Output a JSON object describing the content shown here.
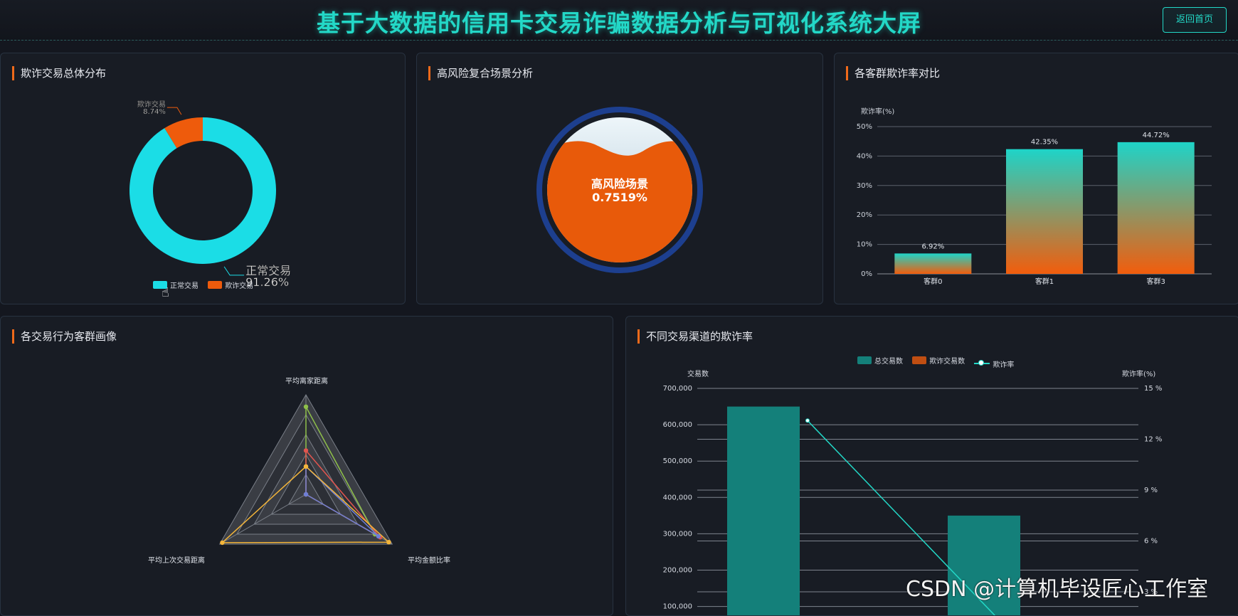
{
  "header": {
    "title": "基于大数据的信用卡交易诈骗数据分析与可视化系统大屏",
    "back_label": "返回首页"
  },
  "colors": {
    "accent": "#23d8c7",
    "orange": "#e85a0a",
    "panel_bg": "#181c24"
  },
  "panels": {
    "fraud_distribution": "欺诈交易总体分布",
    "high_risk": "高风险复合场景分析",
    "cluster_fraud_rate": "各客群欺诈率对比",
    "cluster_radar": "各交易行为客群画像",
    "channel_fraud": "不同交易渠道的欺诈率"
  },
  "watermark": "CSDN @计算机毕设匠心工作室",
  "chart_data": [
    {
      "type": "pie",
      "title": "欺诈交易总体分布",
      "slices": [
        {
          "name": "正常交易",
          "value": 91.26,
          "label": "91.26%",
          "color": "#1bdde6"
        },
        {
          "name": "欺诈交易",
          "value": 8.74,
          "label": "8.74%",
          "color": "#ee5b0c"
        }
      ],
      "donut": true,
      "legend": "bottom"
    },
    {
      "type": "liquidfill",
      "title": "高风险复合场景分析",
      "label": "高风险场景",
      "value_text": "0.7519%"
    },
    {
      "type": "bar",
      "title": "各客群欺诈率对比",
      "ylabel": "欺诈率(%)",
      "categories": [
        "客群0",
        "客群1",
        "客群3"
      ],
      "values": [
        6.92,
        42.35,
        44.72
      ],
      "value_labels": [
        "6.92%",
        "42.35%",
        "44.72%"
      ],
      "yticks": [
        "0%",
        "10%",
        "20%",
        "30%",
        "40%",
        "50%"
      ],
      "ylim": [
        0,
        50
      ],
      "grid": true
    },
    {
      "type": "radar",
      "title": "各交易行为客群画像",
      "indicators": [
        "平均离家距离",
        "平均金额比率",
        "平均上次交易距离"
      ],
      "series": [
        {
          "color": "#8fc04a",
          "values": [
            0.88,
            0.8,
            0.0
          ]
        },
        {
          "color": "#e2554f",
          "values": [
            0.44,
            0.86,
            0.0
          ]
        },
        {
          "color": "#6e7fd6",
          "values": [
            0.28,
            0.84,
            0.0
          ]
        },
        {
          "color": "#f3b53a",
          "values": [
            0.28,
            0.96,
            0.97
          ]
        }
      ]
    },
    {
      "type": "bar",
      "title": "不同交易渠道的欺诈率",
      "legend": [
        "总交易数",
        "欺诈交易数",
        "欺诈率"
      ],
      "ylabel_left": "交易数",
      "ylabel_right": "欺诈率(%)",
      "yticks_left": [
        "700,000",
        "600,000",
        "500,000",
        "400,000",
        "300,000",
        "200,000",
        "100,000"
      ],
      "yticks_right": [
        "15 %",
        "12 %",
        "9 %",
        "6 %",
        "3 %"
      ],
      "ylim_left": [
        0,
        700000
      ],
      "ylim_right": [
        0,
        15
      ],
      "series": [
        {
          "name": "总交易数",
          "type": "bar",
          "values": [
            650000,
            350000
          ]
        },
        {
          "name": "欺诈率",
          "type": "line",
          "values": [
            13.1,
            0
          ]
        }
      ]
    }
  ]
}
